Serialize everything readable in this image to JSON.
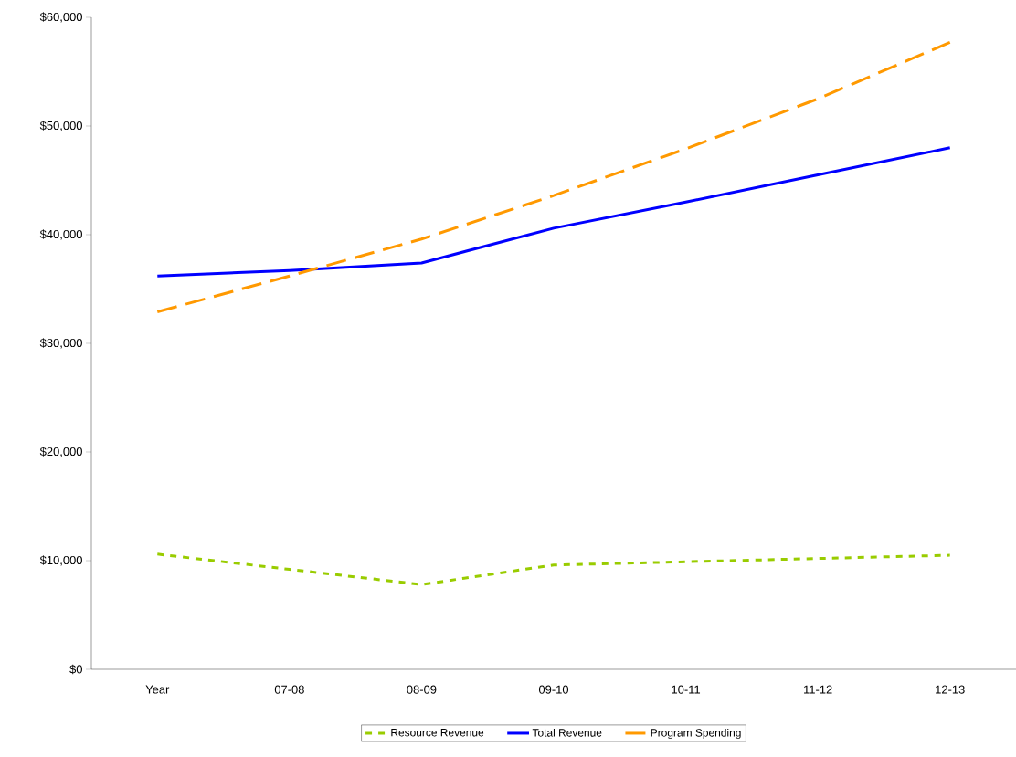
{
  "chart_data": {
    "type": "line",
    "categories": [
      "Year",
      "07-08",
      "08-09",
      "09-10",
      "10-11",
      "11-12",
      "12-13"
    ],
    "series": [
      {
        "name": "Resource Revenue",
        "color": "#99cc00",
        "line_style": "dotted",
        "values": [
          10600,
          9200,
          7800,
          9600,
          9900,
          10200,
          10500
        ]
      },
      {
        "name": "Total Revenue",
        "color": "#0000ff",
        "line_style": "solid",
        "values": [
          36200,
          36700,
          37400,
          40600,
          43000,
          45500,
          48000
        ]
      },
      {
        "name": "Program Spending",
        "color": "#ff9900",
        "line_style": "dashed",
        "values": [
          32900,
          36200,
          39600,
          43600,
          47900,
          52500,
          57700
        ]
      }
    ],
    "ylim": [
      0,
      60000
    ],
    "yticks": [
      {
        "value": 0,
        "label": "$0"
      },
      {
        "value": 10000,
        "label": "$10,000"
      },
      {
        "value": 20000,
        "label": "$20,000"
      },
      {
        "value": 30000,
        "label": "$30,000"
      },
      {
        "value": 40000,
        "label": "$40,000"
      },
      {
        "value": 50000,
        "label": "$50,000"
      },
      {
        "value": 60000,
        "label": "$60,000"
      }
    ],
    "grid": false,
    "legend": "bottom",
    "marker": "none"
  }
}
